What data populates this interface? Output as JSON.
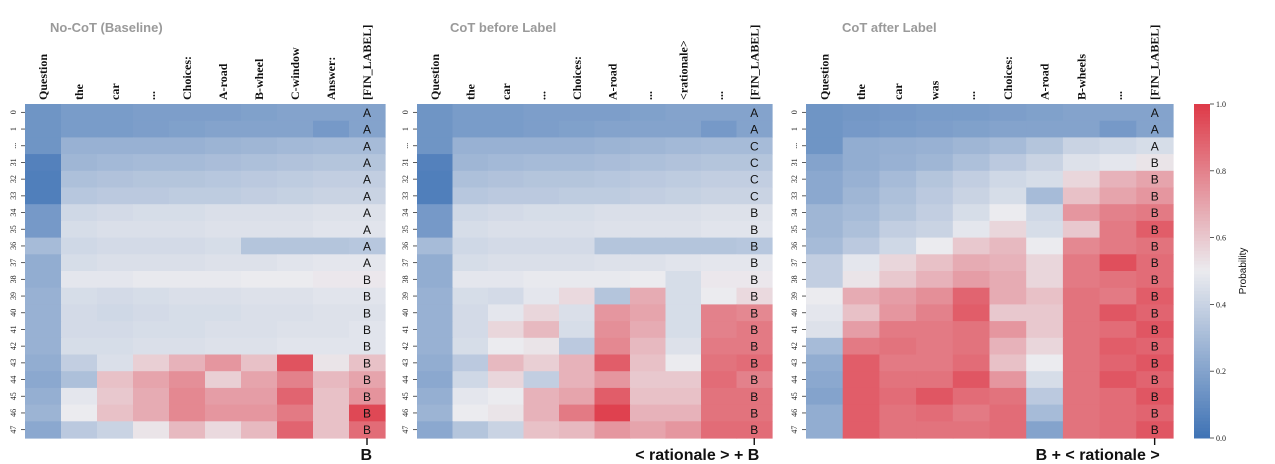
{
  "figure": {
    "colorbar_label": "Probability",
    "colorbar_ticks": [
      "0.0",
      "0.2",
      "0.4",
      "0.6",
      "0.8",
      "1.0"
    ],
    "colors": {
      "low": "#3f73b5",
      "mid": "#ebebef",
      "high": "#de3a48"
    }
  },
  "chart_data": [
    {
      "type": "heatmap",
      "title": "No-CoT  (Baseline)",
      "columns": [
        "Question",
        "the",
        "car",
        "...",
        "Choices:",
        "A-road",
        "B-wheel",
        "C-window",
        "Answer:",
        "[FIN_LABEL]"
      ],
      "rows": [
        "0",
        "1",
        "...",
        "31",
        "32",
        "33",
        "34",
        "35",
        "36",
        "37",
        "38",
        "39",
        "40",
        "41",
        "42",
        "43",
        "44",
        "45",
        "46",
        "47"
      ],
      "labels": [
        "A",
        "A",
        "A",
        "A",
        "A",
        "A",
        "A",
        "A",
        "A",
        "A",
        "B",
        "B",
        "B",
        "B",
        "B",
        "B",
        "B",
        "B",
        "B",
        "B"
      ],
      "values": [
        [
          0.14,
          0.17,
          0.17,
          0.18,
          0.18,
          0.18,
          0.19,
          0.2,
          0.2,
          0.2
        ],
        [
          0.14,
          0.17,
          0.17,
          0.18,
          0.19,
          0.2,
          0.2,
          0.2,
          0.16,
          0.2
        ],
        [
          0.14,
          0.26,
          0.26,
          0.26,
          0.26,
          0.27,
          0.28,
          0.29,
          0.3,
          0.3
        ],
        [
          0.06,
          0.28,
          0.29,
          0.3,
          0.3,
          0.31,
          0.32,
          0.33,
          0.34,
          0.34
        ],
        [
          0.05,
          0.32,
          0.33,
          0.34,
          0.34,
          0.35,
          0.36,
          0.37,
          0.38,
          0.38
        ],
        [
          0.05,
          0.35,
          0.36,
          0.36,
          0.37,
          0.37,
          0.38,
          0.39,
          0.4,
          0.4
        ],
        [
          0.16,
          0.42,
          0.43,
          0.44,
          0.44,
          0.45,
          0.45,
          0.45,
          0.46,
          0.46
        ],
        [
          0.16,
          0.44,
          0.45,
          0.45,
          0.45,
          0.46,
          0.46,
          0.46,
          0.47,
          0.47
        ],
        [
          0.3,
          0.42,
          0.43,
          0.43,
          0.43,
          0.44,
          0.34,
          0.34,
          0.34,
          0.35
        ],
        [
          0.24,
          0.44,
          0.45,
          0.45,
          0.45,
          0.46,
          0.46,
          0.47,
          0.48,
          0.48
        ],
        [
          0.24,
          0.48,
          0.48,
          0.49,
          0.49,
          0.49,
          0.5,
          0.5,
          0.51,
          0.51
        ],
        [
          0.26,
          0.44,
          0.43,
          0.44,
          0.45,
          0.45,
          0.46,
          0.46,
          0.47,
          0.47
        ],
        [
          0.26,
          0.43,
          0.42,
          0.43,
          0.44,
          0.44,
          0.45,
          0.45,
          0.46,
          0.46
        ],
        [
          0.26,
          0.43,
          0.43,
          0.44,
          0.44,
          0.45,
          0.45,
          0.46,
          0.46,
          0.47
        ],
        [
          0.26,
          0.44,
          0.44,
          0.45,
          0.45,
          0.46,
          0.46,
          0.47,
          0.47,
          0.47
        ],
        [
          0.24,
          0.38,
          0.45,
          0.58,
          0.66,
          0.74,
          0.62,
          0.93,
          0.52,
          0.62
        ],
        [
          0.22,
          0.32,
          0.62,
          0.7,
          0.76,
          0.58,
          0.7,
          0.8,
          0.64,
          0.7
        ],
        [
          0.25,
          0.48,
          0.6,
          0.68,
          0.78,
          0.72,
          0.72,
          0.88,
          0.62,
          0.75
        ],
        [
          0.27,
          0.5,
          0.62,
          0.68,
          0.78,
          0.74,
          0.74,
          0.82,
          0.62,
          0.96
        ],
        [
          0.22,
          0.36,
          0.4,
          0.52,
          0.64,
          0.55,
          0.64,
          0.88,
          0.62,
          0.86
        ]
      ],
      "footer_label": "B"
    },
    {
      "type": "heatmap",
      "title": "CoT before Label",
      "columns": [
        "Question",
        "the",
        "car",
        "...",
        "Choices:",
        "A-road",
        "...",
        "<rationale>",
        "...",
        "[FIN_LABEL]"
      ],
      "rows": [
        "0",
        "1",
        "...",
        "31",
        "32",
        "33",
        "34",
        "35",
        "36",
        "37",
        "38",
        "39",
        "40",
        "41",
        "42",
        "43",
        "44",
        "45",
        "46",
        "47"
      ],
      "labels": [
        "A",
        "A",
        "C",
        "C",
        "C",
        "C",
        "B",
        "B",
        "B",
        "B",
        "B",
        "B",
        "B",
        "B",
        "B",
        "B",
        "B",
        "B",
        "B",
        "B"
      ],
      "values": [
        [
          0.14,
          0.17,
          0.17,
          0.18,
          0.18,
          0.18,
          0.19,
          0.2,
          0.2,
          0.2
        ],
        [
          0.14,
          0.17,
          0.17,
          0.18,
          0.19,
          0.2,
          0.2,
          0.2,
          0.16,
          0.2
        ],
        [
          0.14,
          0.26,
          0.26,
          0.26,
          0.26,
          0.27,
          0.28,
          0.29,
          0.3,
          0.3
        ],
        [
          0.06,
          0.28,
          0.29,
          0.3,
          0.3,
          0.31,
          0.32,
          0.33,
          0.34,
          0.34
        ],
        [
          0.05,
          0.32,
          0.33,
          0.34,
          0.34,
          0.35,
          0.36,
          0.37,
          0.38,
          0.38
        ],
        [
          0.05,
          0.35,
          0.36,
          0.36,
          0.37,
          0.37,
          0.38,
          0.39,
          0.4,
          0.4
        ],
        [
          0.16,
          0.42,
          0.43,
          0.44,
          0.44,
          0.45,
          0.45,
          0.45,
          0.46,
          0.46
        ],
        [
          0.16,
          0.44,
          0.45,
          0.45,
          0.45,
          0.46,
          0.46,
          0.46,
          0.47,
          0.47
        ],
        [
          0.3,
          0.42,
          0.43,
          0.43,
          0.43,
          0.34,
          0.34,
          0.34,
          0.34,
          0.35
        ],
        [
          0.24,
          0.44,
          0.45,
          0.45,
          0.45,
          0.46,
          0.46,
          0.47,
          0.48,
          0.48
        ],
        [
          0.24,
          0.48,
          0.48,
          0.49,
          0.49,
          0.49,
          0.5,
          0.44,
          0.51,
          0.51
        ],
        [
          0.26,
          0.44,
          0.43,
          0.48,
          0.55,
          0.34,
          0.68,
          0.44,
          0.5,
          0.55
        ],
        [
          0.26,
          0.43,
          0.48,
          0.56,
          0.45,
          0.74,
          0.7,
          0.44,
          0.8,
          0.78
        ],
        [
          0.26,
          0.43,
          0.56,
          0.64,
          0.44,
          0.76,
          0.68,
          0.44,
          0.8,
          0.82
        ],
        [
          0.26,
          0.44,
          0.5,
          0.52,
          0.36,
          0.78,
          0.64,
          0.46,
          0.82,
          0.82
        ],
        [
          0.24,
          0.36,
          0.64,
          0.58,
          0.66,
          0.9,
          0.62,
          0.5,
          0.84,
          0.86
        ],
        [
          0.22,
          0.42,
          0.56,
          0.38,
          0.66,
          0.74,
          0.6,
          0.6,
          0.86,
          0.8
        ],
        [
          0.25,
          0.48,
          0.5,
          0.66,
          0.7,
          0.9,
          0.62,
          0.62,
          0.84,
          0.84
        ],
        [
          0.27,
          0.5,
          0.52,
          0.66,
          0.82,
          0.98,
          0.66,
          0.66,
          0.84,
          0.84
        ],
        [
          0.22,
          0.34,
          0.4,
          0.62,
          0.64,
          0.74,
          0.7,
          0.74,
          0.86,
          0.86
        ]
      ],
      "footer_label": "< rationale > + B"
    },
    {
      "type": "heatmap",
      "title": "CoT after Label",
      "columns": [
        "Question",
        "the",
        "car",
        "was",
        "...",
        "Choices:",
        "A-road",
        "B-wheels",
        "...",
        "[FIN_LABEL]"
      ],
      "rows": [
        "0",
        "1",
        "...",
        "31",
        "32",
        "33",
        "34",
        "35",
        "36",
        "37",
        "38",
        "39",
        "40",
        "41",
        "42",
        "43",
        "44",
        "45",
        "46",
        "47"
      ],
      "labels": [
        "A",
        "A",
        "A",
        "B",
        "B",
        "B",
        "B",
        "B",
        "B",
        "B",
        "B",
        "B",
        "B",
        "B",
        "B",
        "B",
        "B",
        "B",
        "B",
        "B"
      ],
      "values": [
        [
          0.14,
          0.15,
          0.16,
          0.17,
          0.17,
          0.18,
          0.19,
          0.2,
          0.2,
          0.2
        ],
        [
          0.14,
          0.16,
          0.17,
          0.18,
          0.19,
          0.2,
          0.2,
          0.2,
          0.16,
          0.2
        ],
        [
          0.14,
          0.24,
          0.25,
          0.26,
          0.28,
          0.3,
          0.34,
          0.4,
          0.42,
          0.44
        ],
        [
          0.2,
          0.24,
          0.26,
          0.28,
          0.32,
          0.36,
          0.4,
          0.46,
          0.48,
          0.52
        ],
        [
          0.22,
          0.26,
          0.3,
          0.34,
          0.38,
          0.42,
          0.44,
          0.56,
          0.66,
          0.7
        ],
        [
          0.22,
          0.28,
          0.32,
          0.36,
          0.4,
          0.44,
          0.3,
          0.62,
          0.7,
          0.74
        ],
        [
          0.28,
          0.3,
          0.34,
          0.38,
          0.44,
          0.5,
          0.42,
          0.74,
          0.8,
          0.82
        ],
        [
          0.28,
          0.32,
          0.38,
          0.4,
          0.48,
          0.56,
          0.44,
          0.6,
          0.82,
          0.9
        ],
        [
          0.3,
          0.36,
          0.42,
          0.5,
          0.6,
          0.64,
          0.5,
          0.78,
          0.82,
          0.84
        ],
        [
          0.38,
          0.48,
          0.56,
          0.62,
          0.68,
          0.66,
          0.56,
          0.82,
          0.94,
          0.86
        ],
        [
          0.38,
          0.52,
          0.6,
          0.66,
          0.72,
          0.68,
          0.56,
          0.82,
          0.84,
          0.86
        ],
        [
          0.5,
          0.68,
          0.72,
          0.76,
          0.88,
          0.68,
          0.62,
          0.84,
          0.82,
          0.9
        ],
        [
          0.48,
          0.62,
          0.74,
          0.8,
          0.9,
          0.6,
          0.6,
          0.84,
          0.92,
          0.88
        ],
        [
          0.46,
          0.72,
          0.82,
          0.82,
          0.84,
          0.74,
          0.6,
          0.84,
          0.86,
          0.92
        ],
        [
          0.3,
          0.82,
          0.84,
          0.82,
          0.84,
          0.66,
          0.56,
          0.84,
          0.9,
          0.88
        ],
        [
          0.24,
          0.9,
          0.82,
          0.82,
          0.86,
          0.62,
          0.5,
          0.84,
          0.88,
          0.92
        ],
        [
          0.22,
          0.9,
          0.84,
          0.84,
          0.92,
          0.74,
          0.44,
          0.84,
          0.92,
          0.88
        ],
        [
          0.2,
          0.9,
          0.86,
          0.92,
          0.86,
          0.84,
          0.36,
          0.84,
          0.86,
          0.92
        ],
        [
          0.24,
          0.9,
          0.84,
          0.86,
          0.82,
          0.86,
          0.3,
          0.84,
          0.86,
          0.88
        ],
        [
          0.24,
          0.9,
          0.84,
          0.84,
          0.84,
          0.86,
          0.2,
          0.84,
          0.86,
          0.92
        ]
      ],
      "footer_label": "B + < rationale >"
    }
  ]
}
